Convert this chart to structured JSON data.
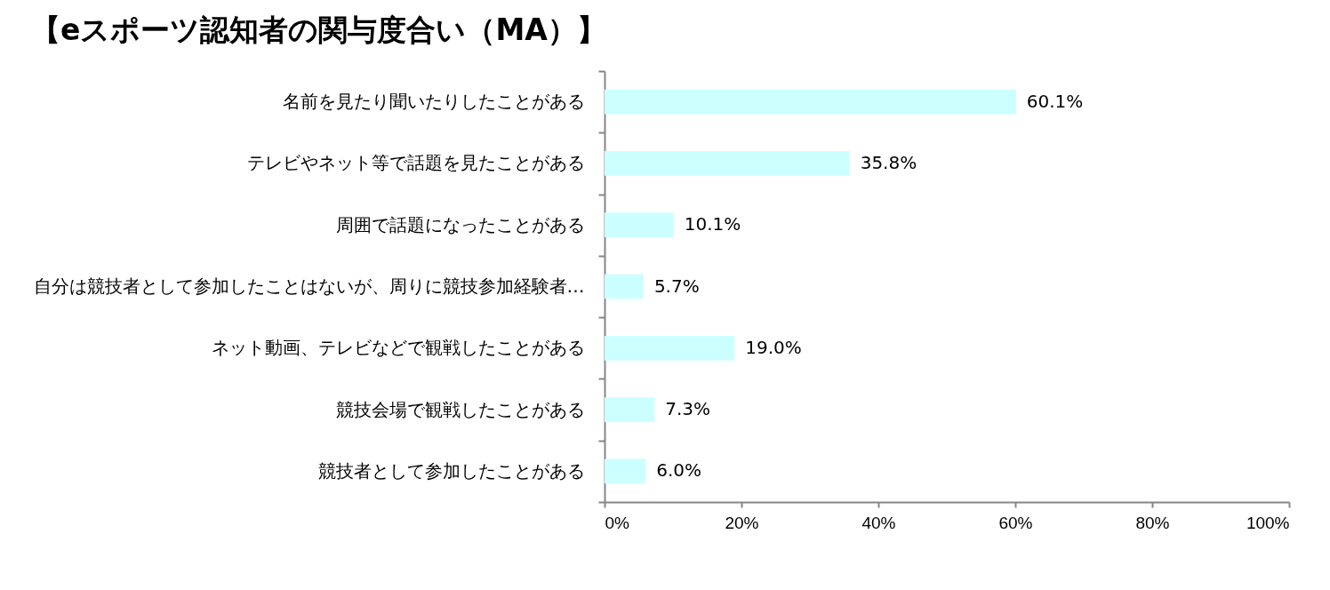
{
  "chart_data": {
    "type": "bar",
    "orientation": "horizontal",
    "title": "【eスポーツ認知者の関与度合い（MA）】",
    "categories": [
      "名前を見たり聞いたりしたことがある",
      "テレビやネット等で話題を見たことがある",
      "周囲で話題になったことがある",
      "自分は競技者として参加したことはないが、周りに競技参加経験者…",
      "ネット動画、テレビなどで観戦したことがある",
      "競技会場で観戦したことがある",
      "競技者として参加したことがある"
    ],
    "values": [
      60.1,
      35.8,
      10.1,
      5.7,
      19.0,
      7.3,
      6.0
    ],
    "value_labels": [
      "60.1%",
      "35.8%",
      "10.1%",
      "5.7%",
      "19.0%",
      "7.3%",
      "6.0%"
    ],
    "color": "#ccffff",
    "xlim": [
      0,
      100
    ],
    "xticks": [
      {
        "value": 0,
        "label": "0%"
      },
      {
        "value": 20,
        "label": "20%"
      },
      {
        "value": 40,
        "label": "40%"
      },
      {
        "value": 60,
        "label": "60%"
      },
      {
        "value": 80,
        "label": "80%"
      },
      {
        "value": 100,
        "label": "100%"
      }
    ]
  }
}
